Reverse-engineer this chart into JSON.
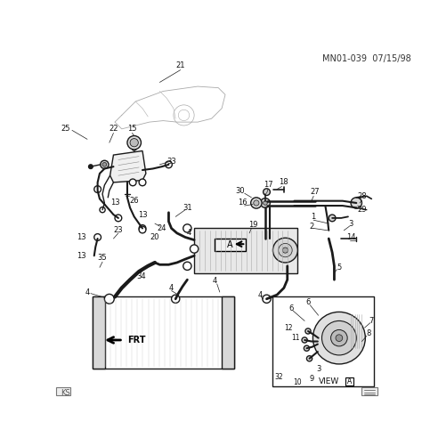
{
  "header_text": "MN01-039  07/15/98",
  "bg_color": "#ffffff",
  "line_color": "#1a1a1a",
  "text_color": "#111111",
  "fig_width": 4.74,
  "fig_height": 5.01,
  "dpi": 100,
  "footer_left": "KS",
  "view_a_label": "VIEW",
  "frt_label": "FRT",
  "lw_main": 1.0,
  "lw_thin": 0.5,
  "fs_label": 6.0,
  "fs_header": 6.5
}
